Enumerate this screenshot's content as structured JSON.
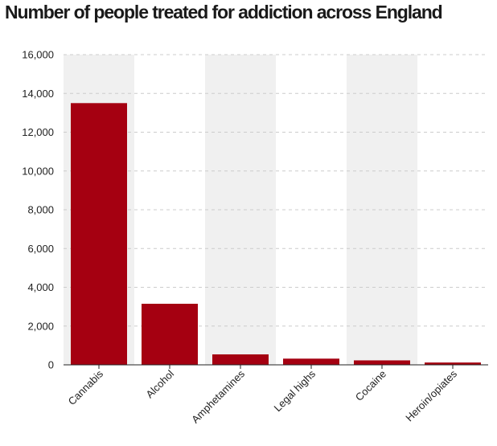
{
  "chart_data": {
    "type": "bar",
    "title": "Number of people treated for addiction across England",
    "xlabel": "",
    "ylabel": "",
    "categories": [
      "Cannabis",
      "Alcohol",
      "Amphetamines",
      "Legal highs",
      "Cocaine",
      "Heroin/opiates"
    ],
    "values": [
      13500,
      3150,
      540,
      320,
      230,
      120
    ],
    "ylim": [
      0,
      16000
    ],
    "yticks": [
      "0",
      "2,000",
      "4,000",
      "6,000",
      "8,000",
      "10,000",
      "12,000",
      "14,000",
      "16,000"
    ],
    "grid": true,
    "alternating_band_shading": true,
    "legend": "none"
  },
  "colors": {
    "bar": "#a50011",
    "band": "#f0f0f0",
    "gridline": "#cccccc",
    "axis": "#222222",
    "text": "#1a1a1a"
  }
}
